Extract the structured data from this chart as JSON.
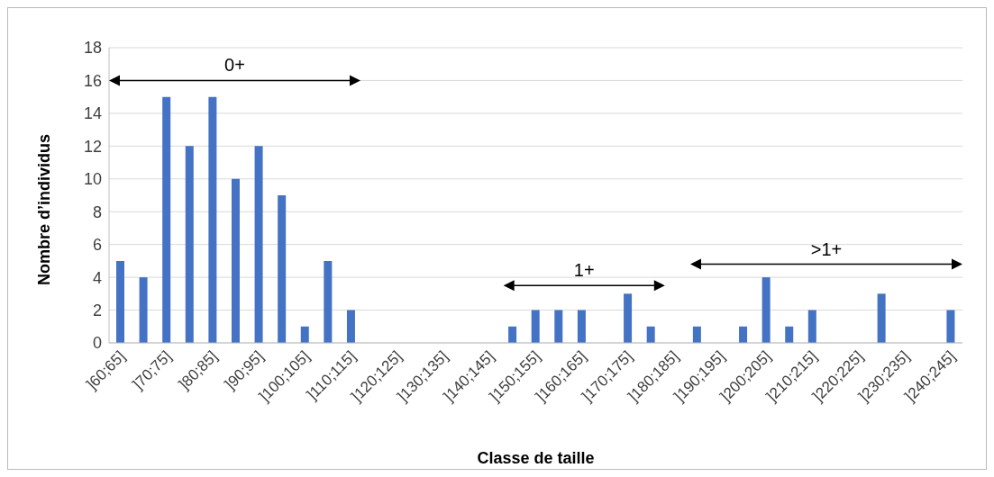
{
  "chart_data": {
    "type": "bar",
    "xlabel": "Classe de taille",
    "ylabel": "Nombre d’individus",
    "categories": [
      "]60;65]",
      null,
      "]70;75]",
      null,
      "]80;85]",
      null,
      "]90;95]",
      null,
      "]100;105]",
      null,
      "]110;115]",
      null,
      "]120;125]",
      null,
      "]130;135]",
      null,
      "]140;145]",
      null,
      "]150;155]",
      null,
      "]160;165]",
      null,
      "]170;175]",
      null,
      "]180;185]",
      null,
      "]190;195]",
      null,
      "]200;205]",
      null,
      "]210;215]",
      null,
      "]220;225]",
      null,
      "]230;235]",
      null,
      "]240;245]"
    ],
    "values": [
      5,
      4,
      15,
      12,
      15,
      10,
      12,
      9,
      1,
      5,
      2,
      0,
      0,
      0,
      0,
      0,
      0,
      1,
      2,
      2,
      2,
      0,
      3,
      1,
      0,
      1,
      0,
      1,
      4,
      1,
      2,
      0,
      0,
      3,
      0,
      0,
      2
    ],
    "color": "#4472c4",
    "ylim": [
      0,
      18
    ],
    "yticks": [
      0,
      2,
      4,
      6,
      8,
      10,
      12,
      14,
      16,
      18
    ],
    "grid": "y",
    "legend": false,
    "annotations": [
      "0+",
      "1+",
      ">1+"
    ]
  }
}
